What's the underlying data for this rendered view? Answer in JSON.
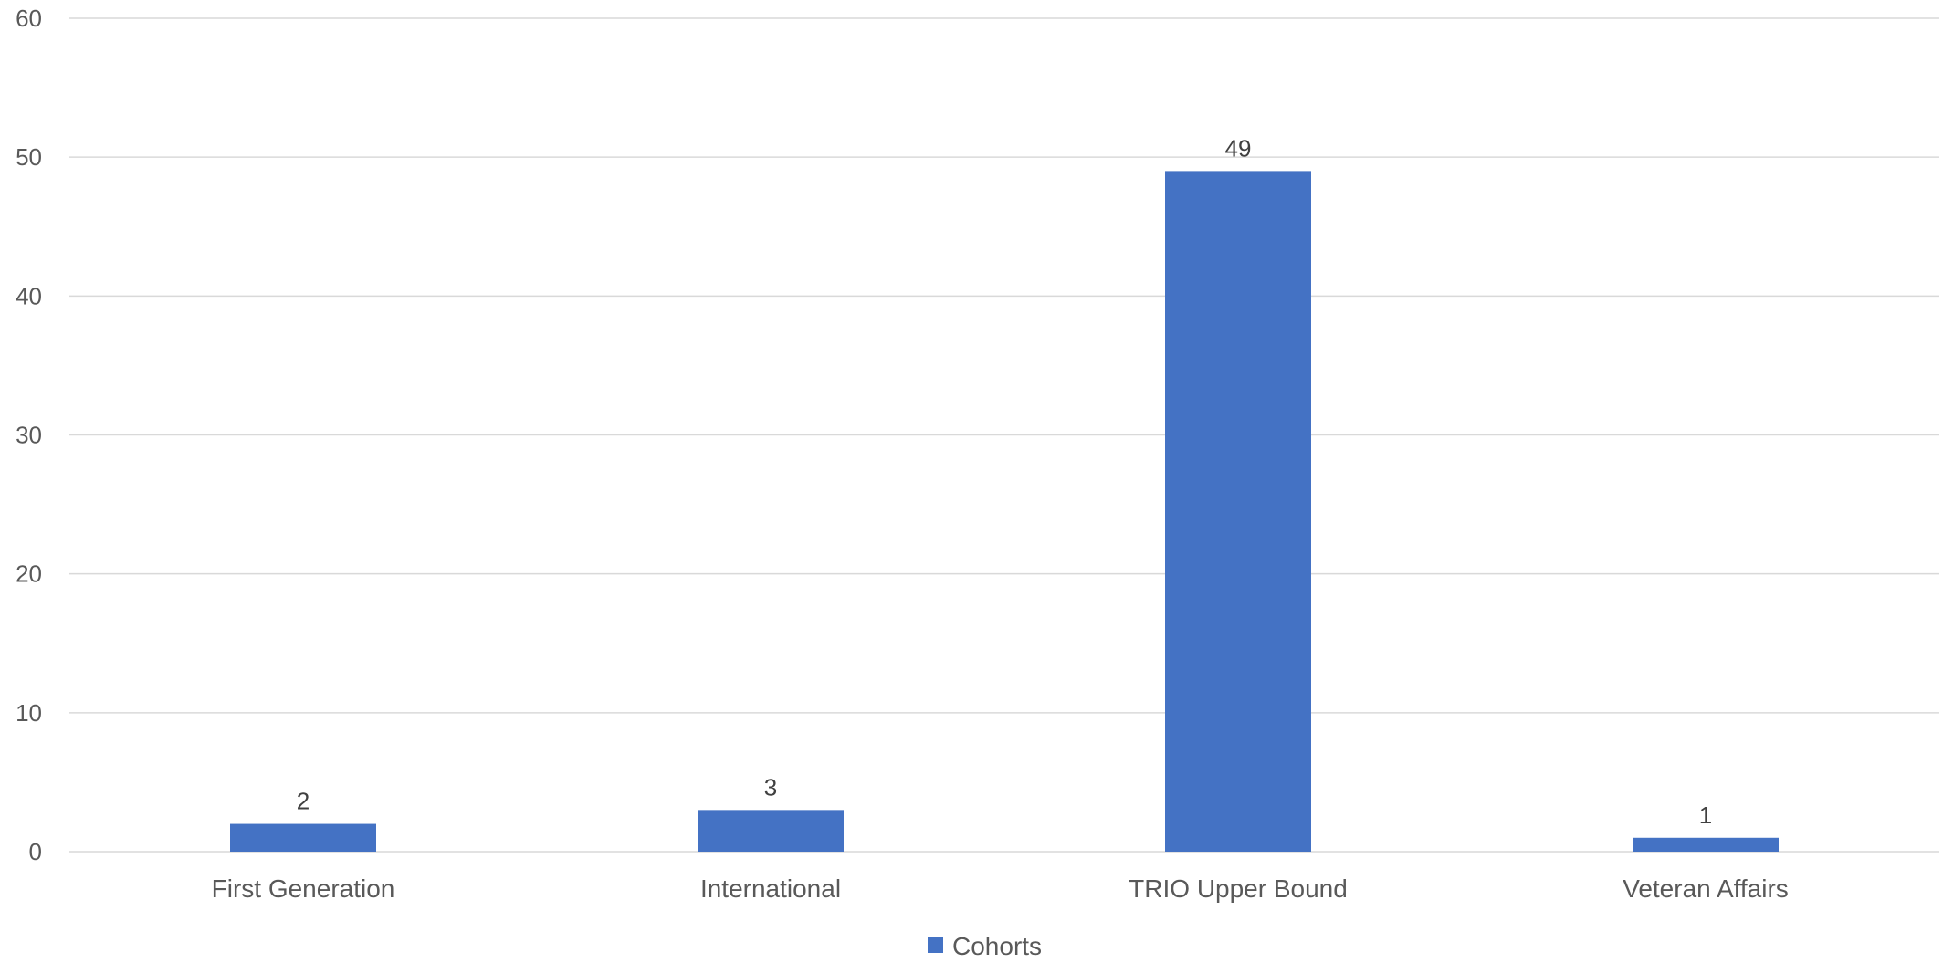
{
  "chart_data": {
    "type": "bar",
    "title": "",
    "xlabel": "",
    "ylabel": "",
    "categories": [
      "First Generation",
      "International",
      "TRIO Upper Bound",
      "Veteran Affairs"
    ],
    "series": [
      {
        "name": "Cohorts",
        "values": [
          2,
          3,
          49,
          1
        ],
        "color": "#4472C4"
      }
    ],
    "data_labels": [
      "2",
      "3",
      "49",
      "1"
    ],
    "ylim": [
      0,
      60
    ],
    "yticks": [
      0,
      10,
      20,
      30,
      40,
      50,
      60
    ],
    "ytick_labels": [
      "0",
      "10",
      "20",
      "30",
      "40",
      "50",
      "60"
    ],
    "grid": true,
    "legend": {
      "position": "bottom",
      "entries": [
        "Cohorts"
      ]
    }
  },
  "colors": {
    "bar": "#4472C4",
    "gridline": "#d9d9d9",
    "axis_text": "#595959",
    "label_text": "#404040"
  }
}
